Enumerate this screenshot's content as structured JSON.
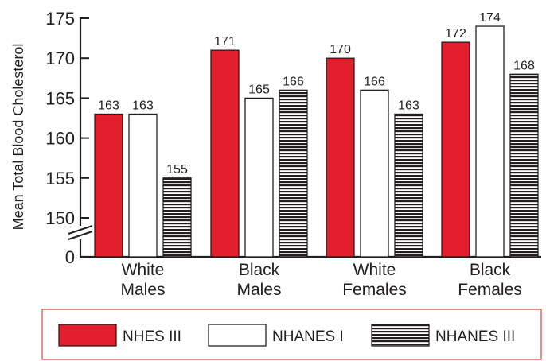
{
  "chart_data": {
    "type": "bar",
    "ylabel": "Mean Total Blood Cholesterol",
    "yaxis_ticks": [
      0,
      150,
      155,
      160,
      165,
      170,
      175
    ],
    "ylim_broken": [
      0,
      150,
      175
    ],
    "categories": [
      [
        "White",
        "Males"
      ],
      [
        "Black",
        "Males"
      ],
      [
        "White",
        "Females"
      ],
      [
        "Black",
        "Females"
      ]
    ],
    "series": [
      {
        "name": "NHES III",
        "values": [
          163,
          171,
          170,
          172
        ],
        "color": "#e31e2d",
        "fill": "solid"
      },
      {
        "name": "NHANES I",
        "values": [
          163,
          165,
          166,
          174
        ],
        "color": "#ffffff",
        "fill": "solid"
      },
      {
        "name": "NHANES III",
        "values": [
          155,
          166,
          163,
          168
        ],
        "color": "#231f20",
        "fill": "horizontal-stripes"
      }
    ],
    "data_labels": true,
    "legend_position": "bottom",
    "grid": false,
    "axis_break": true
  }
}
